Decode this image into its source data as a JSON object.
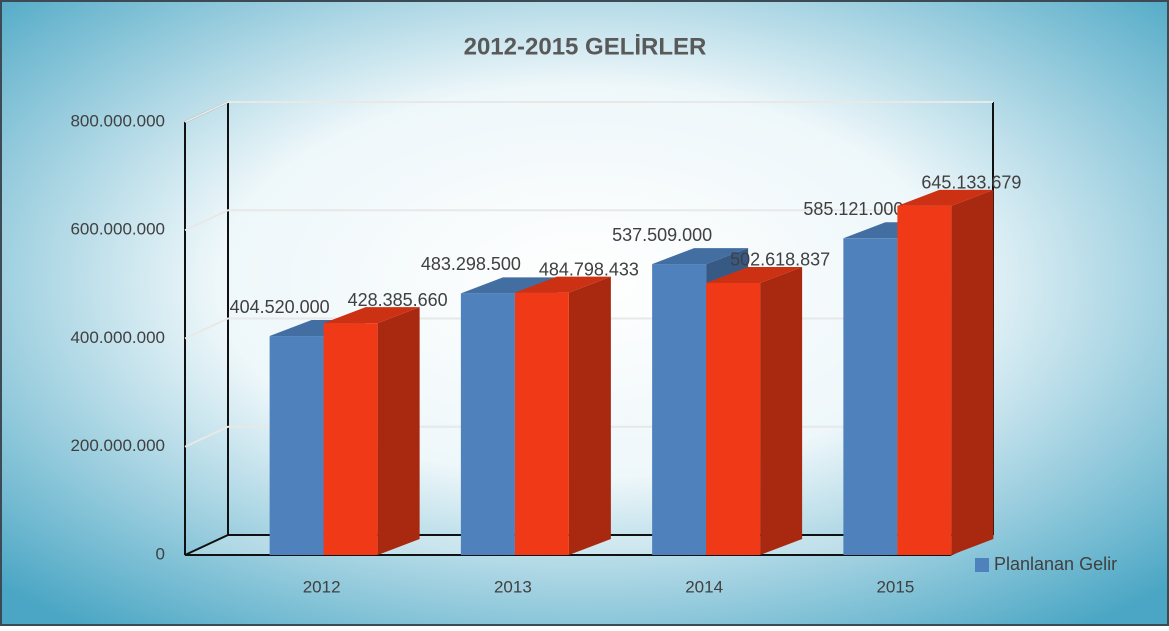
{
  "chart_data": {
    "type": "bar3d",
    "title": "2012-2015 GELİRLER",
    "categories": [
      "2012",
      "2013",
      "2014",
      "2015"
    ],
    "series": [
      {
        "name": "Planlanan Gelir",
        "color": "#4f81bd",
        "values": [
          404520000,
          483298500,
          537509000,
          585121000
        ],
        "value_labels": [
          "404.520.000",
          "483.298.500",
          "537.509.000",
          "585.121.000"
        ]
      },
      {
        "color": "#f03a17",
        "values": [
          428385660,
          484798433,
          502618837,
          645133679
        ],
        "value_labels": [
          "428.385.660",
          "484.798.433",
          "502.618.837",
          "645.133.679"
        ]
      }
    ],
    "ylim": [
      0,
      800000000
    ],
    "yticks": [
      0,
      {
        "value": 200000000,
        "label": "200.000.000"
      },
      {
        "value": 400000000,
        "label": "400.000.000"
      },
      {
        "value": 600000000,
        "label": "600.000.000"
      },
      {
        "value": 800000000,
        "label": "800.000.000"
      }
    ],
    "grid": true,
    "legend": "right"
  }
}
